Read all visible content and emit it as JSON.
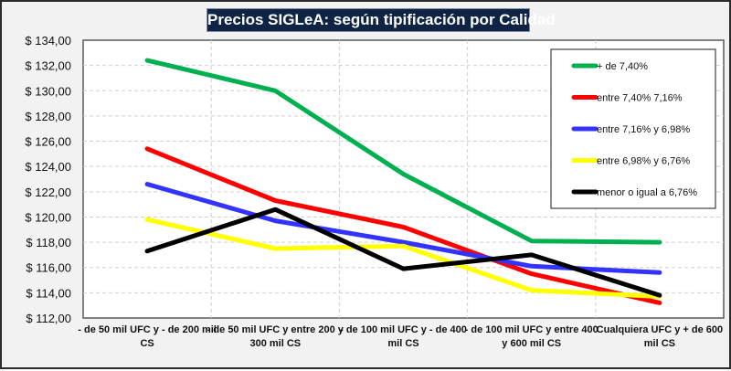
{
  "chart_data": {
    "type": "line",
    "title": "Precios SIGLeA: según tipificación por Calidad",
    "xlabel": "",
    "ylabel": "",
    "ylim": [
      112,
      134
    ],
    "ytick_step": 2,
    "ytick_labels": [
      "$ 112,00",
      "$ 114,00",
      "$ 116,00",
      "$ 118,00",
      "$ 120,00",
      "$ 122,00",
      "$ 124,00",
      "$ 126,00",
      "$ 128,00",
      "$ 130,00",
      "$ 132,00",
      "$ 134,00"
    ],
    "grid": true,
    "legend_position": "top-right",
    "categories": [
      [
        "- de 50 mil UFC y - de 200 mil",
        "CS"
      ],
      [
        "- de 50 mil UFC y entre  200 y",
        "300 mil CS"
      ],
      [
        "- de 100 mil UFC y - de 400",
        "mil CS"
      ],
      [
        "- de 100 mil UFC y entre  400",
        "y 600 mil CS"
      ],
      [
        "Cualquiera UFC y + de 600",
        "mil CS"
      ]
    ],
    "series": [
      {
        "name": "+ de 7,40%",
        "color": "#00b050",
        "values": [
          132.4,
          130.0,
          123.4,
          118.1,
          118.0
        ]
      },
      {
        "name": "entre 7,40% 7,16%",
        "color": "#ff0000",
        "values": [
          125.4,
          121.3,
          119.2,
          115.5,
          113.2
        ]
      },
      {
        "name": "entre 7,16% y 6,98%",
        "color": "#3333ff",
        "values": [
          122.6,
          119.7,
          118.0,
          116.1,
          115.6
        ]
      },
      {
        "name": "entre 6,98% y 6,76%",
        "color": "#ffff00",
        "values": [
          119.8,
          117.5,
          117.7,
          114.2,
          113.7
        ]
      },
      {
        "name": "menor o igual a 6,76%",
        "color": "#000000",
        "values": [
          117.3,
          120.6,
          115.9,
          117.0,
          113.8
        ]
      }
    ]
  }
}
